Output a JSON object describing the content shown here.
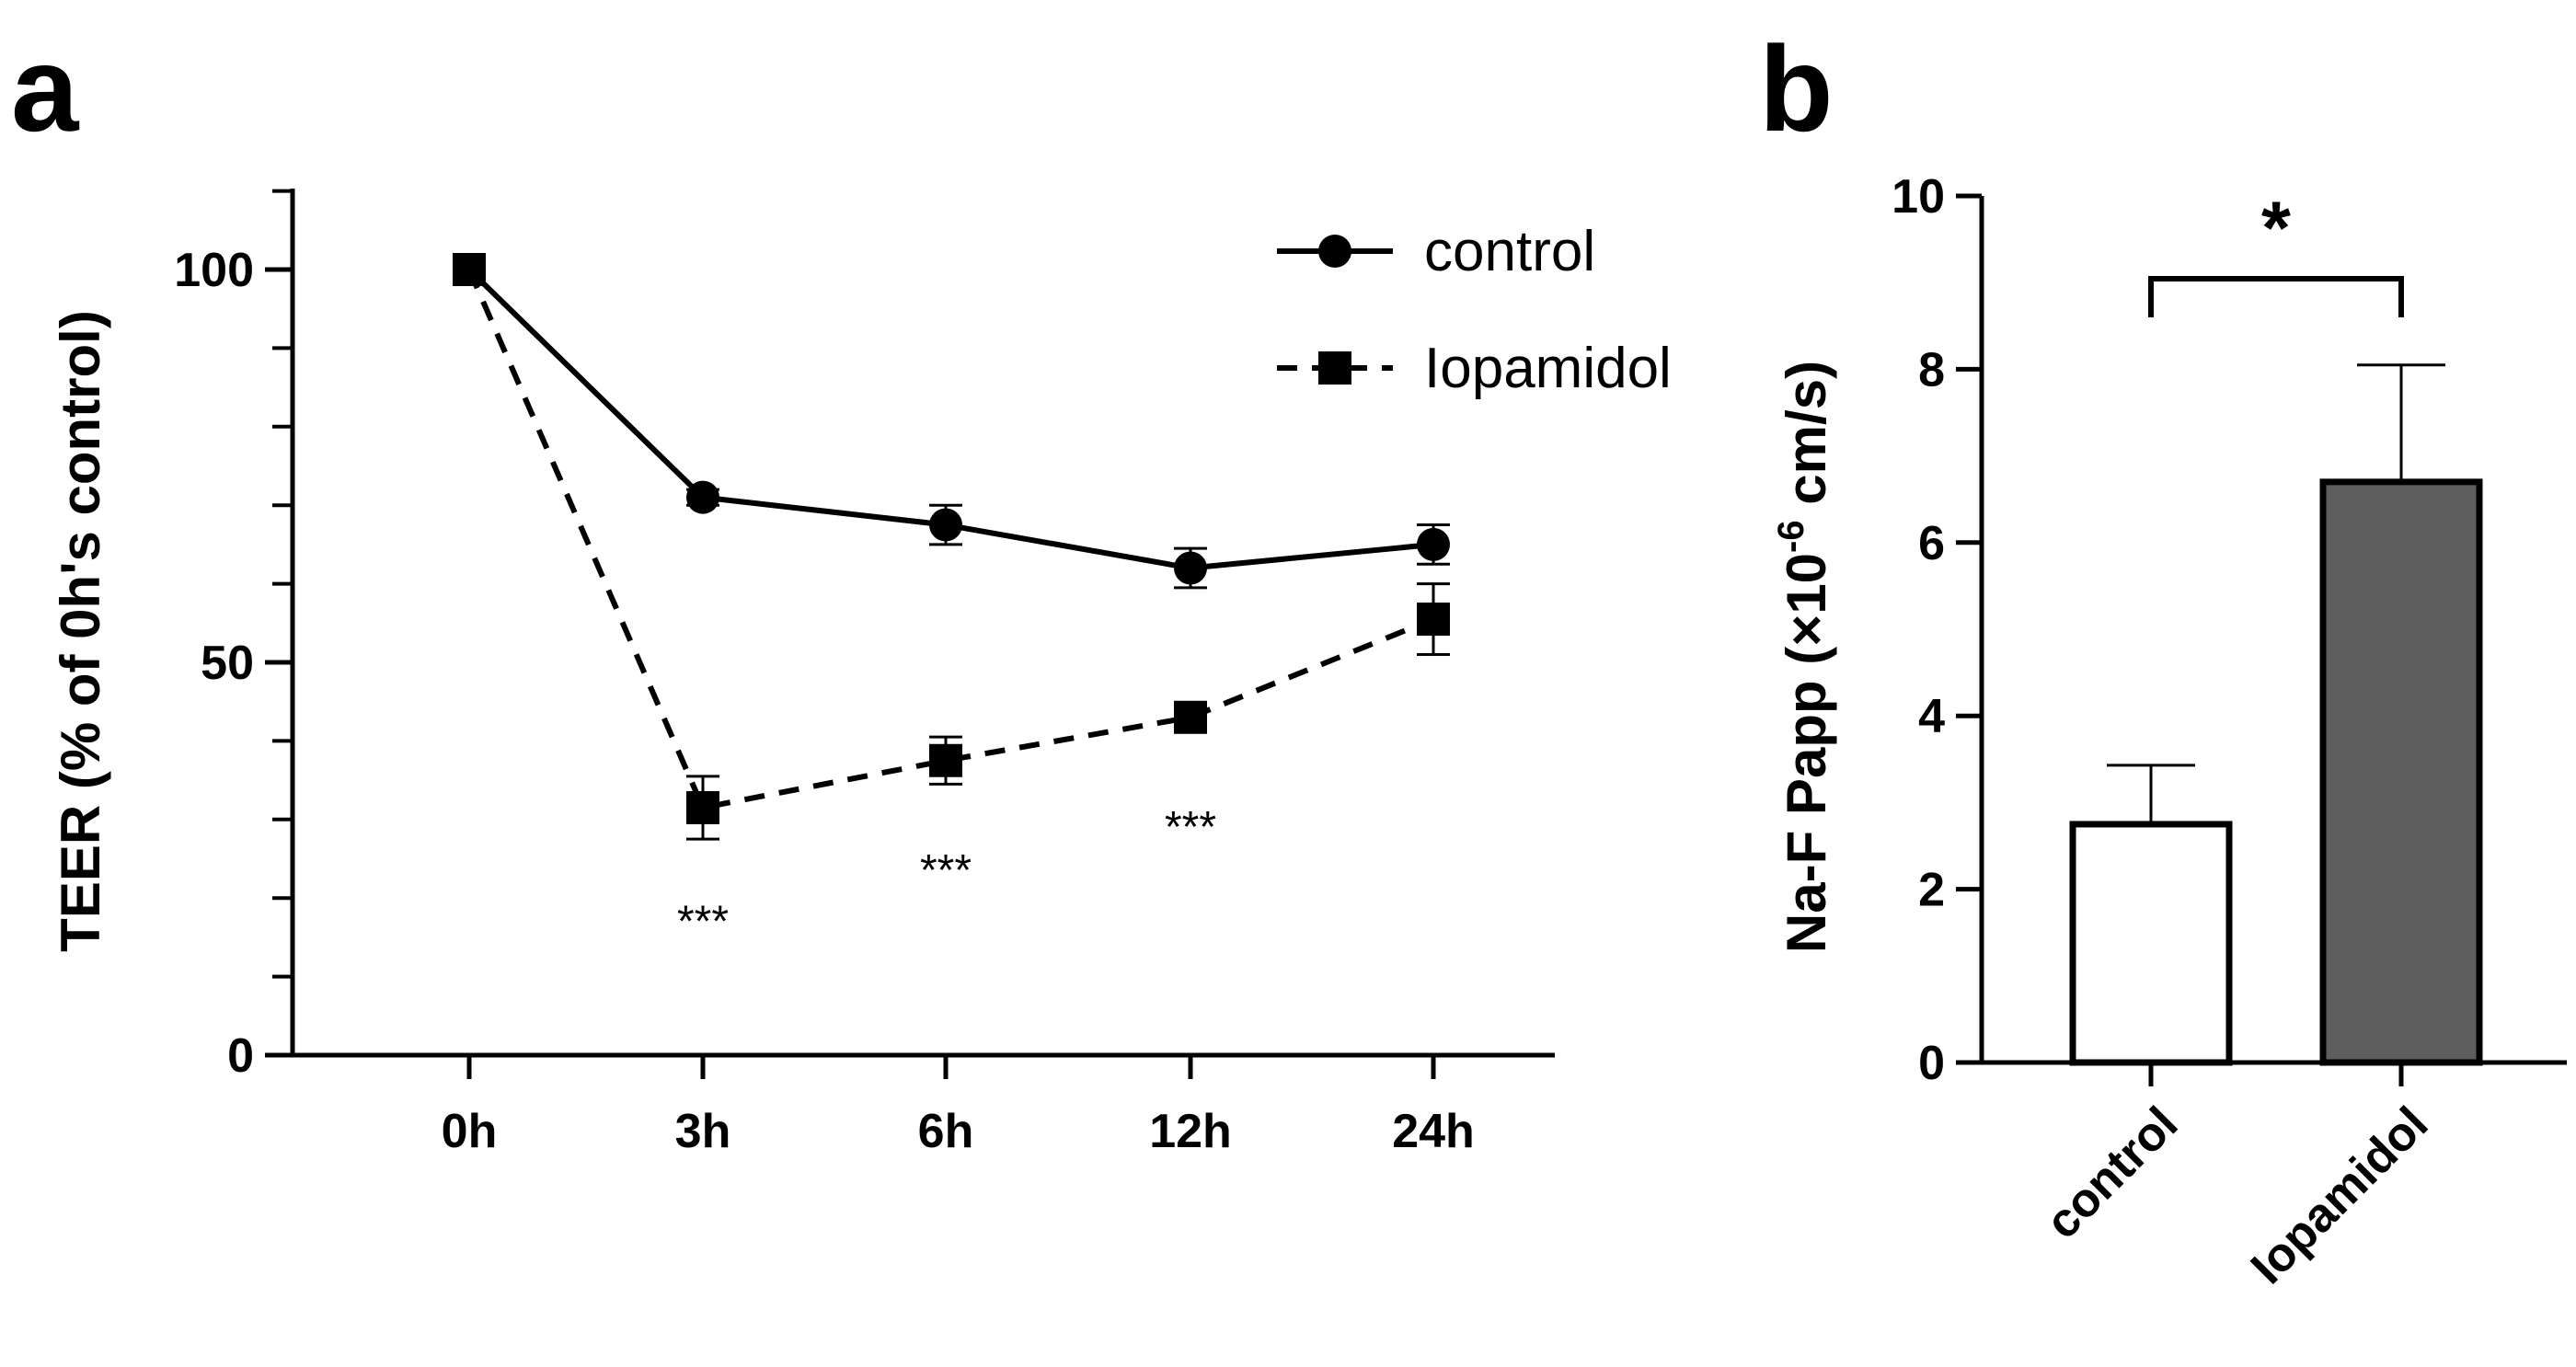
{
  "panels": {
    "a_label": "a",
    "b_label": "b"
  },
  "chart_data": [
    {
      "type": "line",
      "panel": "a",
      "ylabel": "TEER (% of 0h's control)",
      "xlabel": "",
      "categories": [
        "0h",
        "3h",
        "6h",
        "12h",
        "24h"
      ],
      "ylim": [
        0,
        110
      ],
      "yticks": [
        0,
        50,
        100
      ],
      "y_minor_step": 10,
      "legend_position": "top-right",
      "series": [
        {
          "name": "control",
          "marker": "circle",
          "line_style": "solid",
          "values": [
            100,
            71,
            67.5,
            62,
            65
          ],
          "errors": [
            0,
            1,
            2.5,
            2.5,
            2.5
          ]
        },
        {
          "name": "Iopamidol",
          "marker": "square",
          "line_style": "dashed",
          "values": [
            100,
            31.5,
            37.5,
            43,
            55.5
          ],
          "errors": [
            0,
            4,
            3,
            1.5,
            4.5
          ]
        }
      ],
      "annotations": [
        {
          "category": "3h",
          "text": "***",
          "y": 18
        },
        {
          "category": "6h",
          "text": "***",
          "y": 24.5
        },
        {
          "category": "12h",
          "text": "***",
          "y": 30
        }
      ]
    },
    {
      "type": "bar",
      "panel": "b",
      "ylabel_main": "Na-F Papp (×10",
      "ylabel_exp": "-6",
      "ylabel_tail": " cm/s)",
      "categories": [
        "control",
        "Iopamidol"
      ],
      "values": [
        2.75,
        6.7
      ],
      "errors": [
        0.68,
        1.35
      ],
      "colors": [
        "#ffffff",
        "#5e5e5e"
      ],
      "ylim": [
        0,
        10
      ],
      "yticks": [
        0,
        2,
        4,
        6,
        8,
        10
      ],
      "significance": "*"
    }
  ]
}
